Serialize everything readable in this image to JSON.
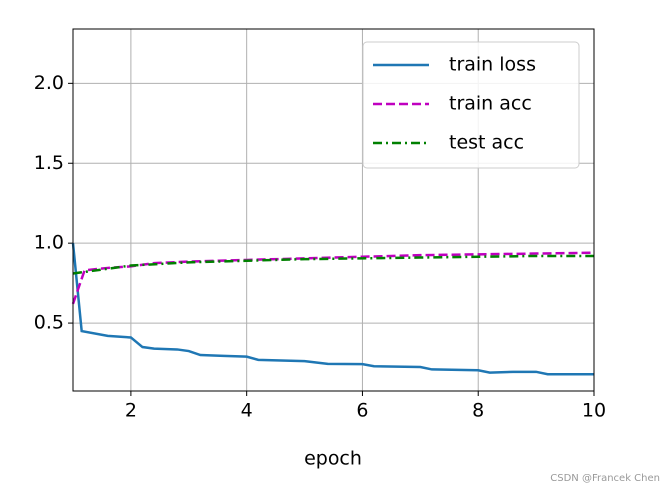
{
  "chart_data": {
    "type": "line",
    "xlabel": "epoch",
    "xlim": [
      1,
      10
    ],
    "xticks": [
      2,
      4,
      6,
      8,
      10
    ],
    "ylim": [
      0.075,
      2.34
    ],
    "yticks": [
      0.5,
      {
        "value": 1.0,
        "label": "1.0"
      },
      1.5,
      {
        "value": 2.0,
        "label": "2.0"
      }
    ],
    "grid": true,
    "legend": "upper right",
    "series": [
      {
        "name": "train loss",
        "color": "#1f77b4",
        "linestyle": "-",
        "x": [
          1,
          1.15,
          1.6,
          2.0,
          2.2,
          2.4,
          2.8,
          3.0,
          3.2,
          3.6,
          4.0,
          4.2,
          5.0,
          5.4,
          6.0,
          6.2,
          7.0,
          7.2,
          8.0,
          8.2,
          8.6,
          9.0,
          9.2,
          10
        ],
        "values": [
          1.0,
          0.45,
          0.42,
          0.41,
          0.35,
          0.34,
          0.335,
          0.325,
          0.3,
          0.295,
          0.29,
          0.27,
          0.262,
          0.245,
          0.243,
          0.23,
          0.225,
          0.21,
          0.205,
          0.19,
          0.195,
          0.195,
          0.18,
          0.18
        ]
      },
      {
        "name": "train acc",
        "color": "#bf00bf",
        "linestyle": "--",
        "x": [
          1,
          1.2,
          1.6,
          2.0,
          2.4,
          3,
          4,
          5,
          6,
          7,
          8,
          9,
          10
        ],
        "values": [
          0.62,
          0.83,
          0.845,
          0.855,
          0.875,
          0.885,
          0.895,
          0.905,
          0.915,
          0.925,
          0.93,
          0.935,
          0.94
        ]
      },
      {
        "name": "test acc",
        "color": "#008000",
        "linestyle": "-.",
        "x": [
          1,
          2,
          3,
          4,
          5,
          6,
          7,
          8,
          9,
          10
        ],
        "values": [
          0.81,
          0.86,
          0.88,
          0.89,
          0.9,
          0.905,
          0.91,
          0.915,
          0.92,
          0.92
        ]
      }
    ]
  },
  "watermark": "CSDN @Francek Chen"
}
